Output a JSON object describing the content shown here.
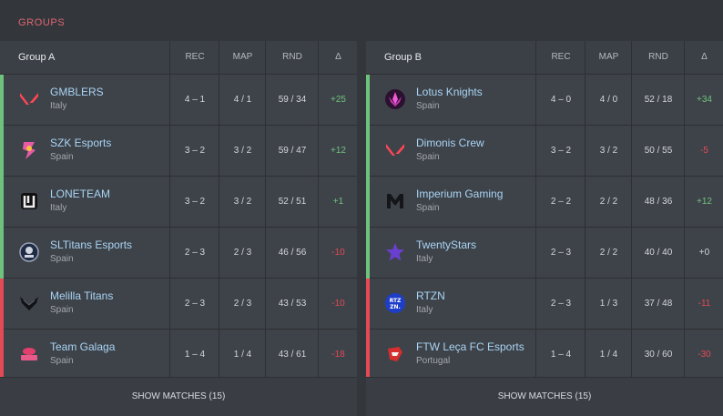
{
  "section_title": "GROUPS",
  "columns": {
    "rec": "REC",
    "map": "MAP",
    "rnd": "RND",
    "delta": "Δ"
  },
  "colors": {
    "qualified": "#6fc27e",
    "eliminated": "#e34a55",
    "accent": "#e06672"
  },
  "groups": [
    {
      "name": "Group A",
      "footer": "SHOW MATCHES (15)",
      "teams": [
        {
          "name": "GMBLERS",
          "country": "Italy",
          "rec": "4 – 1",
          "map": "4 / 1",
          "rnd": "59 / 34",
          "delta": "+25",
          "status": "qualified",
          "icon": "valorant-icon"
        },
        {
          "name": "SZK Esports",
          "country": "Spain",
          "rec": "3 – 2",
          "map": "3 / 2",
          "rnd": "59 / 47",
          "delta": "+12",
          "status": "qualified",
          "icon": "szk-logo-icon"
        },
        {
          "name": "LONETEAM",
          "country": "Italy",
          "rec": "3 – 2",
          "map": "3 / 2",
          "rnd": "52 / 51",
          "delta": "+1",
          "status": "qualified",
          "icon": "loneteam-logo-icon"
        },
        {
          "name": "SLTitans Esports",
          "country": "Spain",
          "rec": "2 – 3",
          "map": "2 / 3",
          "rnd": "46 / 56",
          "delta": "-10",
          "status": "qualified",
          "icon": "sltitans-logo-icon"
        },
        {
          "name": "Melilla Titans",
          "country": "Spain",
          "rec": "2 – 3",
          "map": "2 / 3",
          "rnd": "43 / 53",
          "delta": "-10",
          "status": "eliminated",
          "icon": "melilla-logo-icon"
        },
        {
          "name": "Team Galaga",
          "country": "Spain",
          "rec": "1 – 4",
          "map": "1 / 4",
          "rnd": "43 / 61",
          "delta": "-18",
          "status": "eliminated",
          "icon": "galaga-logo-icon"
        }
      ]
    },
    {
      "name": "Group B",
      "footer": "SHOW MATCHES (15)",
      "teams": [
        {
          "name": "Lotus Knights",
          "country": "Spain",
          "rec": "4 – 0",
          "map": "4 / 0",
          "rnd": "52 / 18",
          "delta": "+34",
          "status": "qualified",
          "icon": "lotus-logo-icon"
        },
        {
          "name": "Dimonis Crew",
          "country": "Spain",
          "rec": "3 – 2",
          "map": "3 / 2",
          "rnd": "50 / 55",
          "delta": "-5",
          "status": "qualified",
          "icon": "valorant-icon"
        },
        {
          "name": "Imperium Gaming",
          "country": "Spain",
          "rec": "2 – 2",
          "map": "2 / 2",
          "rnd": "48 / 36",
          "delta": "+12",
          "status": "qualified",
          "icon": "imperium-logo-icon"
        },
        {
          "name": "TwentyStars",
          "country": "Italy",
          "rec": "2 – 3",
          "map": "2 / 2",
          "rnd": "40 / 40",
          "delta": "+0",
          "status": "qualified",
          "icon": "star-logo-icon"
        },
        {
          "name": "RTZN",
          "country": "Italy",
          "rec": "2 – 3",
          "map": "1 / 3",
          "rnd": "37 / 48",
          "delta": "-11",
          "status": "eliminated",
          "icon": "rtzn-logo-icon"
        },
        {
          "name": "FTW Leça FC Esports",
          "country": "Portugal",
          "rec": "1 – 4",
          "map": "1 / 4",
          "rnd": "30 / 60",
          "delta": "-30",
          "status": "eliminated",
          "icon": "ftw-logo-icon"
        }
      ]
    }
  ]
}
